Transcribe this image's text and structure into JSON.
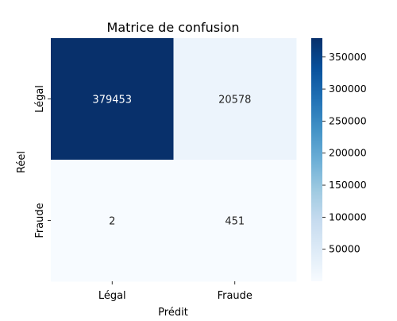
{
  "chart_data": {
    "type": "heatmap",
    "title": "Matrice de confusion",
    "xlabel": "Prédit",
    "ylabel": "Réel",
    "x_categories": [
      "Légal",
      "Fraude"
    ],
    "y_categories": [
      "Légal",
      "Fraude"
    ],
    "values": [
      [
        379453,
        20578
      ],
      [
        2,
        451
      ]
    ],
    "colormap": "Blues",
    "color_range": [
      2,
      379453
    ],
    "colorbar_ticks": [
      50000,
      100000,
      150000,
      200000,
      250000,
      300000,
      350000
    ],
    "colors": {
      "low": "#f7fbff",
      "high": "#08306b",
      "text_on_dark": "#ffffff",
      "text_on_light": "#262626"
    }
  }
}
